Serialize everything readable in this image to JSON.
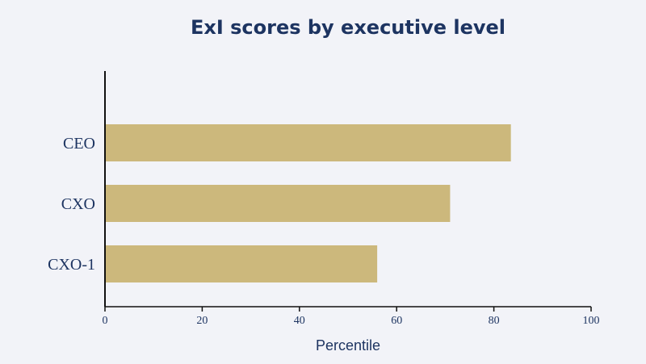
{
  "chart_data": {
    "type": "bar",
    "orientation": "horizontal",
    "title": "ExI scores by executive level",
    "xlabel": "Percentile",
    "ylabel": "",
    "categories": [
      "CEO",
      "CXO",
      "CXO-1"
    ],
    "values": [
      83.5,
      71,
      56
    ],
    "xlim": [
      0,
      100
    ],
    "xticks": [
      "0",
      "20",
      "40",
      "60",
      "80",
      "100"
    ],
    "grid": false,
    "legend": "none"
  },
  "colors": {
    "background": "#f2f3f8",
    "bar": "#ccb87c",
    "text": "#1d3461",
    "axis": "#111111"
  }
}
